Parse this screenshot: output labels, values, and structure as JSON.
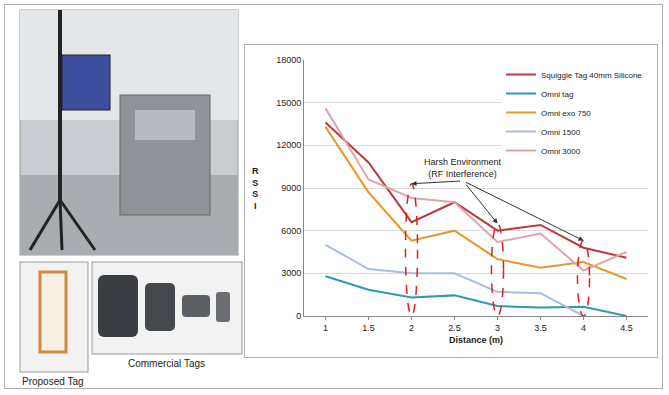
{
  "chart_data": {
    "type": "line",
    "x": [
      1,
      1.5,
      2,
      2.5,
      3,
      3.5,
      4,
      4.5
    ],
    "xlabel": "Distance (m)",
    "ylabel": "RSSI",
    "xlim": [
      0.75,
      4.75
    ],
    "xticks": [
      1,
      1.5,
      2,
      2.5,
      3,
      3.5,
      4,
      4.5
    ],
    "ylim": [
      0,
      18000
    ],
    "yticks": [
      0,
      3000,
      6000,
      9000,
      12000,
      15000,
      18000
    ],
    "grid": true,
    "legend": "upper right",
    "series": [
      {
        "name": "Squiggle Tag 40mm Silicone",
        "color": "#b83a3f",
        "values": [
          13600,
          10800,
          6600,
          8000,
          6000,
          6400,
          4800,
          4100
        ]
      },
      {
        "name": "Omni tag",
        "color": "#2f9aa8",
        "values": [
          2800,
          1850,
          1300,
          1450,
          700,
          600,
          650,
          0
        ]
      },
      {
        "name": "Omni exo 750",
        "color": "#e8962e",
        "values": [
          13300,
          8700,
          5300,
          6000,
          4000,
          3400,
          3800,
          2600
        ]
      },
      {
        "name": "Omni 1500",
        "color": "#a9bedc",
        "values": [
          5000,
          3300,
          3000,
          3000,
          1700,
          1600,
          0,
          null
        ]
      },
      {
        "name": "Omni 3000",
        "color": "#e3a3ab",
        "values": [
          14600,
          9600,
          8300,
          8000,
          5200,
          5800,
          3200,
          4500
        ]
      }
    ],
    "annotations": [
      {
        "text": [
          "Harsh Environment",
          "(RF Interference)"
        ],
        "x": 2.6,
        "y": 9500,
        "targets": [
          {
            "x": 2,
            "y": 9300
          },
          {
            "x": 3,
            "y": 6500
          },
          {
            "x": 4,
            "y": 5300
          }
        ]
      }
    ]
  },
  "captions": [
    "Proposed Tag",
    "Commercial Tags"
  ]
}
